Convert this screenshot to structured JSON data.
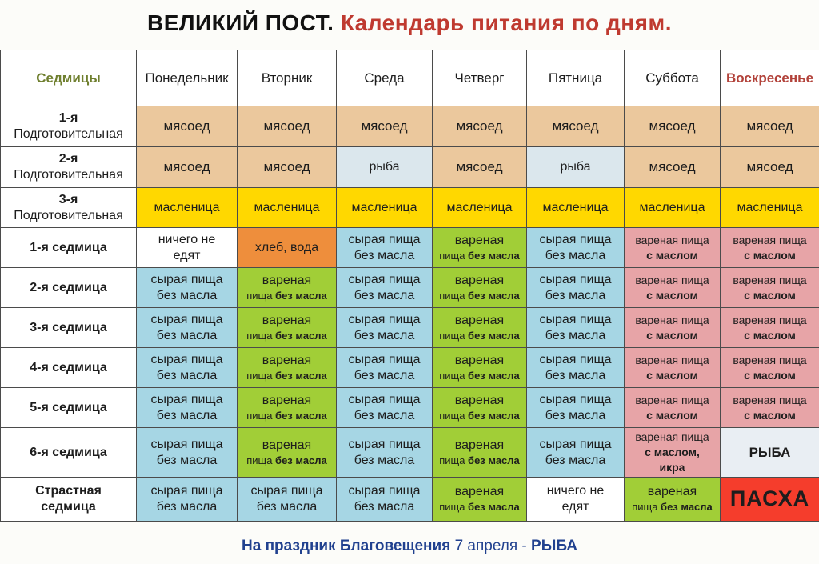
{
  "title": {
    "part_black": "ВЕЛИКИЙ ПОСТ.",
    "part_red": " Календарь питания по дням."
  },
  "colors": {
    "meat": "#ebc89d",
    "fish_light": "#dbe7ed",
    "maslenitsa": "#ffd800",
    "raw": "#a6d6e4",
    "boiled": "#a1ce37",
    "oil": "#e7a4a7",
    "bread": "#ee8e3c",
    "none": "#ffffff",
    "pascha": "#f53d2c",
    "fish_sunday": "#e9eef3"
  },
  "table": {
    "headers": [
      "Седмицы",
      "Понедельник",
      "Вторник",
      "Среда",
      "Четверг",
      "Пятница",
      "Суббота",
      "Воскресенье"
    ],
    "cell_types": {
      "meat": {
        "bg": "meat",
        "lines": [
          {
            "t": "мясоед",
            "sz": "lg"
          }
        ]
      },
      "fish": {
        "bg": "fish_light",
        "lines": [
          {
            "t": "рыба"
          }
        ]
      },
      "maslenitsa": {
        "bg": "maslenitsa",
        "lines": [
          {
            "t": "масленица"
          }
        ]
      },
      "none": {
        "bg": "none",
        "lines": [
          {
            "t": "ничего не"
          },
          {
            "t": "едят"
          }
        ]
      },
      "bread": {
        "bg": "bread",
        "lines": [
          {
            "t": "хлеб, вода"
          }
        ]
      },
      "raw": {
        "bg": "raw",
        "lines": [
          {
            "t": "сырая пища"
          },
          {
            "t": "без масла"
          }
        ]
      },
      "boiled": {
        "bg": "boiled",
        "lines": [
          {
            "t": "вареная"
          },
          {
            "seg": [
              {
                "t": "пища "
              },
              {
                "t": "без масла",
                "b": true
              }
            ],
            "sz": "sm"
          }
        ]
      },
      "oil": {
        "bg": "oil",
        "lines": [
          {
            "t": "вареная пища",
            "sz": "md"
          },
          {
            "t": "с маслом",
            "b": true,
            "sz": "md"
          }
        ]
      },
      "oil_ikra": {
        "bg": "oil",
        "lines": [
          {
            "t": "вареная пища",
            "sz": "md"
          },
          {
            "t": "с маслом,",
            "b": true,
            "sz": "md"
          },
          {
            "t": "икра",
            "b": true,
            "sz": "md"
          }
        ]
      },
      "fish_caps": {
        "bg": "fish_sunday",
        "lines": [
          {
            "t": "РЫБА",
            "b": true,
            "sz": "lg"
          }
        ]
      },
      "pascha": {
        "bg": "pascha",
        "lines": [
          {
            "t": "ПАСХА",
            "b": true,
            "sz": "xl"
          }
        ]
      }
    },
    "rows": [
      {
        "label": [
          {
            "t": "1-я",
            "b": true
          },
          {
            "t": "Подготовительная"
          }
        ],
        "cells": [
          "meat",
          "meat",
          "meat",
          "meat",
          "meat",
          "meat",
          "meat"
        ]
      },
      {
        "label": [
          {
            "t": "2-я",
            "b": true
          },
          {
            "t": "Подготовительная"
          }
        ],
        "cells": [
          "meat",
          "meat",
          "fish",
          "meat",
          "fish",
          "meat",
          "meat"
        ]
      },
      {
        "label": [
          {
            "t": "3-я",
            "b": true
          },
          {
            "t": "Подготовительная"
          }
        ],
        "cells": [
          "maslenitsa",
          "maslenitsa",
          "maslenitsa",
          "maslenitsa",
          "maslenitsa",
          "maslenitsa",
          "maslenitsa"
        ]
      },
      {
        "label": [
          {
            "t": "1-я седмица",
            "b": true
          }
        ],
        "cells": [
          "none",
          "bread",
          "raw",
          "boiled",
          "raw",
          "oil",
          "oil"
        ]
      },
      {
        "label": [
          {
            "t": "2-я седмица",
            "b": true
          }
        ],
        "cells": [
          "raw",
          "boiled",
          "raw",
          "boiled",
          "raw",
          "oil",
          "oil"
        ]
      },
      {
        "label": [
          {
            "t": "3-я седмица",
            "b": true
          }
        ],
        "cells": [
          "raw",
          "boiled",
          "raw",
          "boiled",
          "raw",
          "oil",
          "oil"
        ]
      },
      {
        "label": [
          {
            "t": "4-я седмица",
            "b": true
          }
        ],
        "cells": [
          "raw",
          "boiled",
          "raw",
          "boiled",
          "raw",
          "oil",
          "oil"
        ]
      },
      {
        "label": [
          {
            "t": "5-я седмица",
            "b": true
          }
        ],
        "cells": [
          "raw",
          "boiled",
          "raw",
          "boiled",
          "raw",
          "oil",
          "oil"
        ]
      },
      {
        "label": [
          {
            "t": "6-я седмица",
            "b": true
          }
        ],
        "cells": [
          "raw",
          "boiled",
          "raw",
          "boiled",
          "raw",
          "oil_ikra",
          "fish_caps"
        ]
      },
      {
        "label": [
          {
            "t": "Страстная",
            "b": true
          },
          {
            "t": "седмица",
            "b": true
          }
        ],
        "cells": [
          "raw",
          "raw",
          "raw",
          "boiled",
          "none",
          "boiled",
          "pascha"
        ]
      }
    ]
  },
  "footer": {
    "bold_prefix": "На праздник Благовещения",
    "middle": " 7 апреля - ",
    "bold_suffix": " РЫБА"
  }
}
